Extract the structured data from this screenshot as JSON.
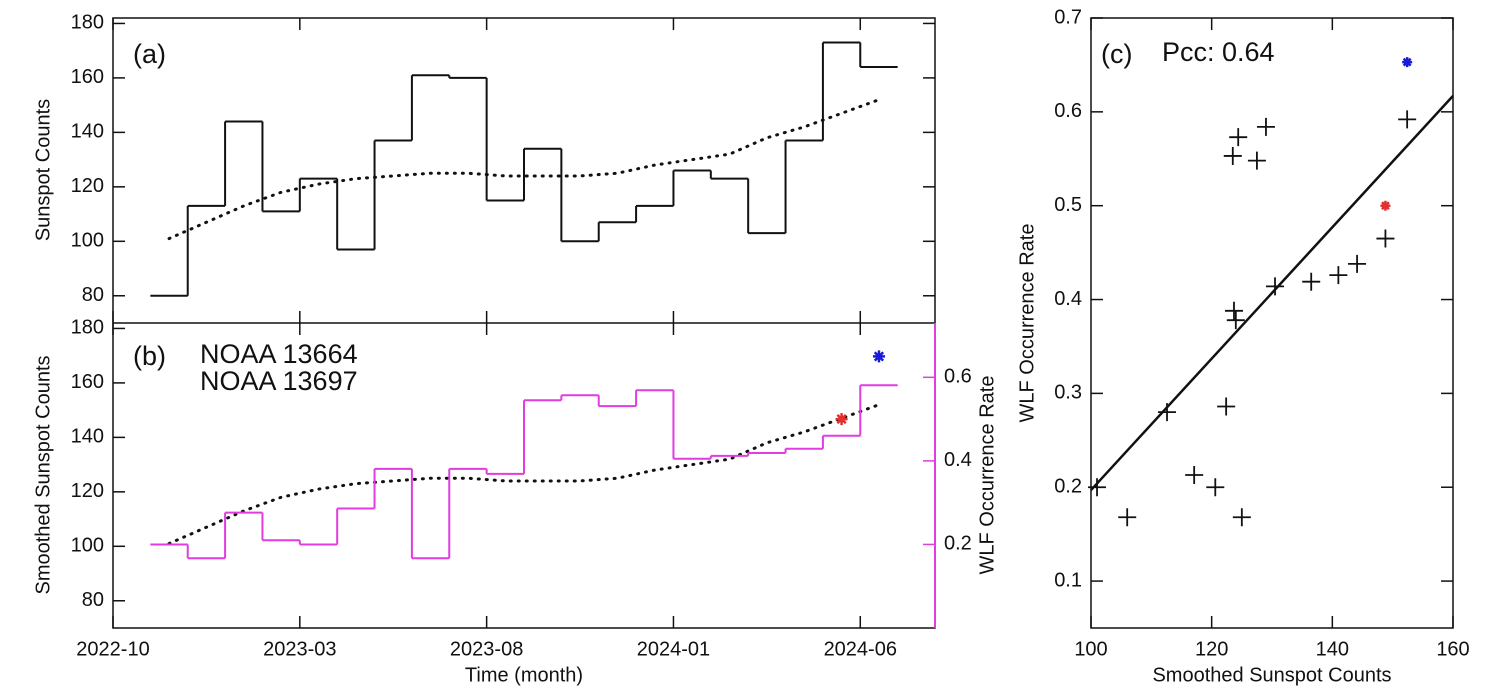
{
  "chart_data": [
    {
      "type": "step",
      "label": "(a)",
      "ylabel": "Sunspot Counts",
      "ylim": [
        70,
        182
      ],
      "yticks": [
        80,
        100,
        120,
        140,
        160,
        180
      ],
      "x": [
        "2022-11",
        "2022-12",
        "2023-01",
        "2023-02",
        "2023-03",
        "2023-04",
        "2023-05",
        "2023-06",
        "2023-07",
        "2023-08",
        "2023-09",
        "2023-10",
        "2023-11",
        "2023-12",
        "2024-01",
        "2024-02",
        "2024-03",
        "2024-04",
        "2024-05",
        "2024-06"
      ],
      "series": [
        {
          "color": "#111111",
          "style": "step",
          "values": [
            80,
            113,
            144,
            111,
            123,
            97,
            137,
            161,
            160,
            115,
            134,
            100,
            107,
            113,
            126,
            123,
            103,
            137,
            173,
            164
          ]
        },
        {
          "color": "#111111",
          "style": "dotted",
          "values": [
            101,
            107,
            113,
            118,
            121,
            123,
            124,
            125,
            125,
            124,
            124,
            124,
            125,
            128,
            130,
            132,
            138,
            142,
            147,
            152
          ]
        }
      ]
    },
    {
      "type": "step",
      "label": "(b)",
      "ylabel": "Smoothed Sunspot Counts",
      "y2label": "WLF Occurrence Rate",
      "xlabel": "Time (month)",
      "xlim": [
        "2022-10",
        "2024-08"
      ],
      "xticks": [
        "2022-10",
        "2023-03",
        "2023-08",
        "2024-01",
        "2024-06"
      ],
      "ylim": [
        70,
        182
      ],
      "yticks": [
        80,
        100,
        120,
        140,
        160,
        180
      ],
      "y2lim": [
        0,
        0.73
      ],
      "y2ticks": [
        0.2,
        0.4,
        0.6
      ],
      "y2color": "#e03ce0",
      "x": [
        "2022-11",
        "2022-12",
        "2023-01",
        "2023-02",
        "2023-03",
        "2023-04",
        "2023-05",
        "2023-06",
        "2023-07",
        "2023-08",
        "2023-09",
        "2023-10",
        "2023-11",
        "2023-12",
        "2024-01",
        "2024-02",
        "2024-03",
        "2024-04",
        "2024-05",
        "2024-06"
      ],
      "series": [
        {
          "color": "#111111",
          "style": "dotted",
          "values": [
            101,
            107,
            113,
            118,
            121,
            123,
            124,
            125,
            125,
            124,
            124,
            124,
            125,
            128,
            130,
            132,
            138,
            142,
            147,
            152
          ]
        },
        {
          "color": "#e03ce0",
          "style": "step",
          "axis": "y2",
          "values": [
            0.2,
            0.167,
            0.276,
            0.21,
            0.2,
            0.286,
            0.381,
            0.167,
            0.381,
            0.369,
            0.545,
            0.557,
            0.531,
            0.569,
            0.405,
            0.412,
            0.419,
            0.429,
            0.46,
            0.581
          ]
        },
        {
          "name": "NOAA 13664",
          "color": "#e03030",
          "style": "star",
          "axis": "y2",
          "x": [
            "2024-05"
          ],
          "values": [
            0.5
          ]
        },
        {
          "name": "NOAA 13697",
          "color": "#1a1ad8",
          "style": "star",
          "axis": "y2",
          "x": [
            "2024-06"
          ],
          "values": [
            0.65
          ]
        }
      ]
    },
    {
      "type": "scatter",
      "label": "(c)",
      "annotation": "Pcc: 0.64",
      "annotation_color": "#1c1c8c",
      "xlabel": "Smoothed Sunspot Counts",
      "ylabel": "WLF Occurrence Rate",
      "xlim": [
        100,
        160
      ],
      "xticks": [
        100,
        120,
        140,
        160
      ],
      "ylim": [
        0.05,
        0.7
      ],
      "yticks": [
        0.1,
        0.2,
        0.3,
        0.4,
        0.5,
        0.6,
        0.7
      ],
      "series": [
        {
          "color": "#111111",
          "marker": "plus",
          "x": [
            101,
            106,
            112.6,
            117.1,
            120.6,
            122.4,
            123.5,
            124.4,
            123.7,
            124,
            125,
            127.5,
            129,
            130.5,
            136.5,
            141,
            144.1,
            148.8,
            152.4
          ],
          "values": [
            0.2,
            0.168,
            0.28,
            0.213,
            0.2,
            0.286,
            0.553,
            0.573,
            0.388,
            0.378,
            0.168,
            0.548,
            0.584,
            0.414,
            0.419,
            0.426,
            0.438,
            0.465,
            0.592
          ]
        },
        {
          "color": "#e03030",
          "marker": "star",
          "x": [
            148.8
          ],
          "values": [
            0.5
          ]
        },
        {
          "color": "#1a1ad8",
          "marker": "star",
          "x": [
            152.4
          ],
          "values": [
            0.653
          ]
        }
      ],
      "fit": {
        "color": "#111111",
        "x": [
          100,
          160
        ],
        "values": [
          0.197,
          0.617
        ]
      }
    }
  ]
}
